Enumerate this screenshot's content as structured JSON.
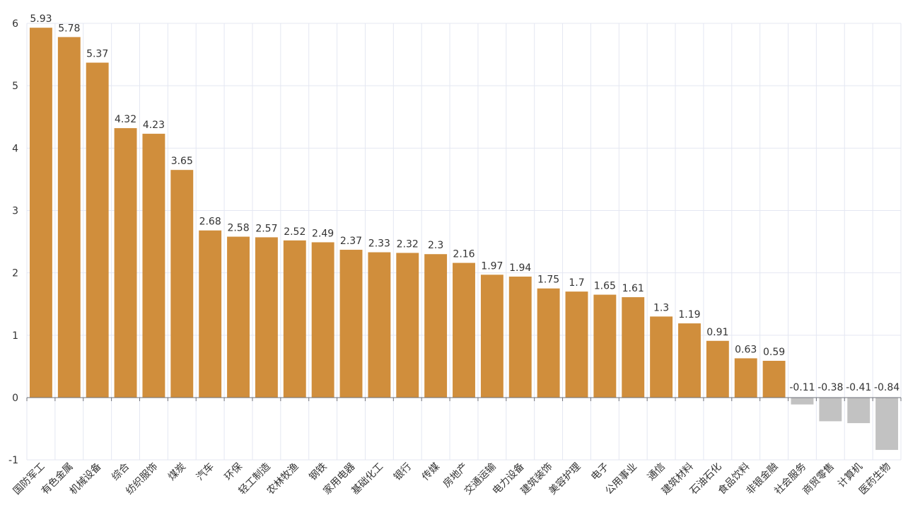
{
  "chart_data": {
    "type": "bar",
    "title": "",
    "xlabel": "",
    "ylabel": "",
    "ylim": [
      -1,
      6
    ],
    "yticks": [
      6,
      5,
      4,
      3,
      2,
      1,
      0,
      -1
    ],
    "grid": true,
    "colors": {
      "positive": "#d08e3c",
      "negative": "#c2c2c2",
      "grid": "#e4e7f2",
      "axis": "#6e7079"
    },
    "categories": [
      "国防军工",
      "有色金属",
      "机械设备",
      "综合",
      "纺织服饰",
      "煤炭",
      "汽车",
      "环保",
      "轻工制造",
      "农林牧渔",
      "钢铁",
      "家用电器",
      "基础化工",
      "银行",
      "传媒",
      "房地产",
      "交通运输",
      "电力设备",
      "建筑装饰",
      "美容护理",
      "电子",
      "公用事业",
      "通信",
      "建筑材料",
      "石油石化",
      "食品饮料",
      "非银金融",
      "社会服务",
      "商贸零售",
      "计算机",
      "医药生物"
    ],
    "values": [
      5.93,
      5.78,
      5.37,
      4.32,
      4.23,
      3.65,
      2.68,
      2.58,
      2.57,
      2.52,
      2.49,
      2.37,
      2.33,
      2.32,
      2.3,
      2.16,
      1.97,
      1.94,
      1.75,
      1.7,
      1.65,
      1.61,
      1.3,
      1.19,
      0.91,
      0.63,
      0.59,
      -0.11,
      -0.38,
      -0.41,
      -0.84
    ],
    "value_labels": [
      "5.93",
      "5.78",
      "5.37",
      "4.32",
      "4.23",
      "3.65",
      "2.68",
      "2.58",
      "2.57",
      "2.52",
      "2.49",
      "2.37",
      "2.33",
      "2.32",
      "2.3",
      "2.16",
      "1.97",
      "1.94",
      "1.75",
      "1.7",
      "1.65",
      "1.61",
      "1.3",
      "1.19",
      "0.91",
      "0.63",
      "0.59",
      "-0.11",
      "-0.38",
      "-0.41",
      "-0.84"
    ]
  }
}
